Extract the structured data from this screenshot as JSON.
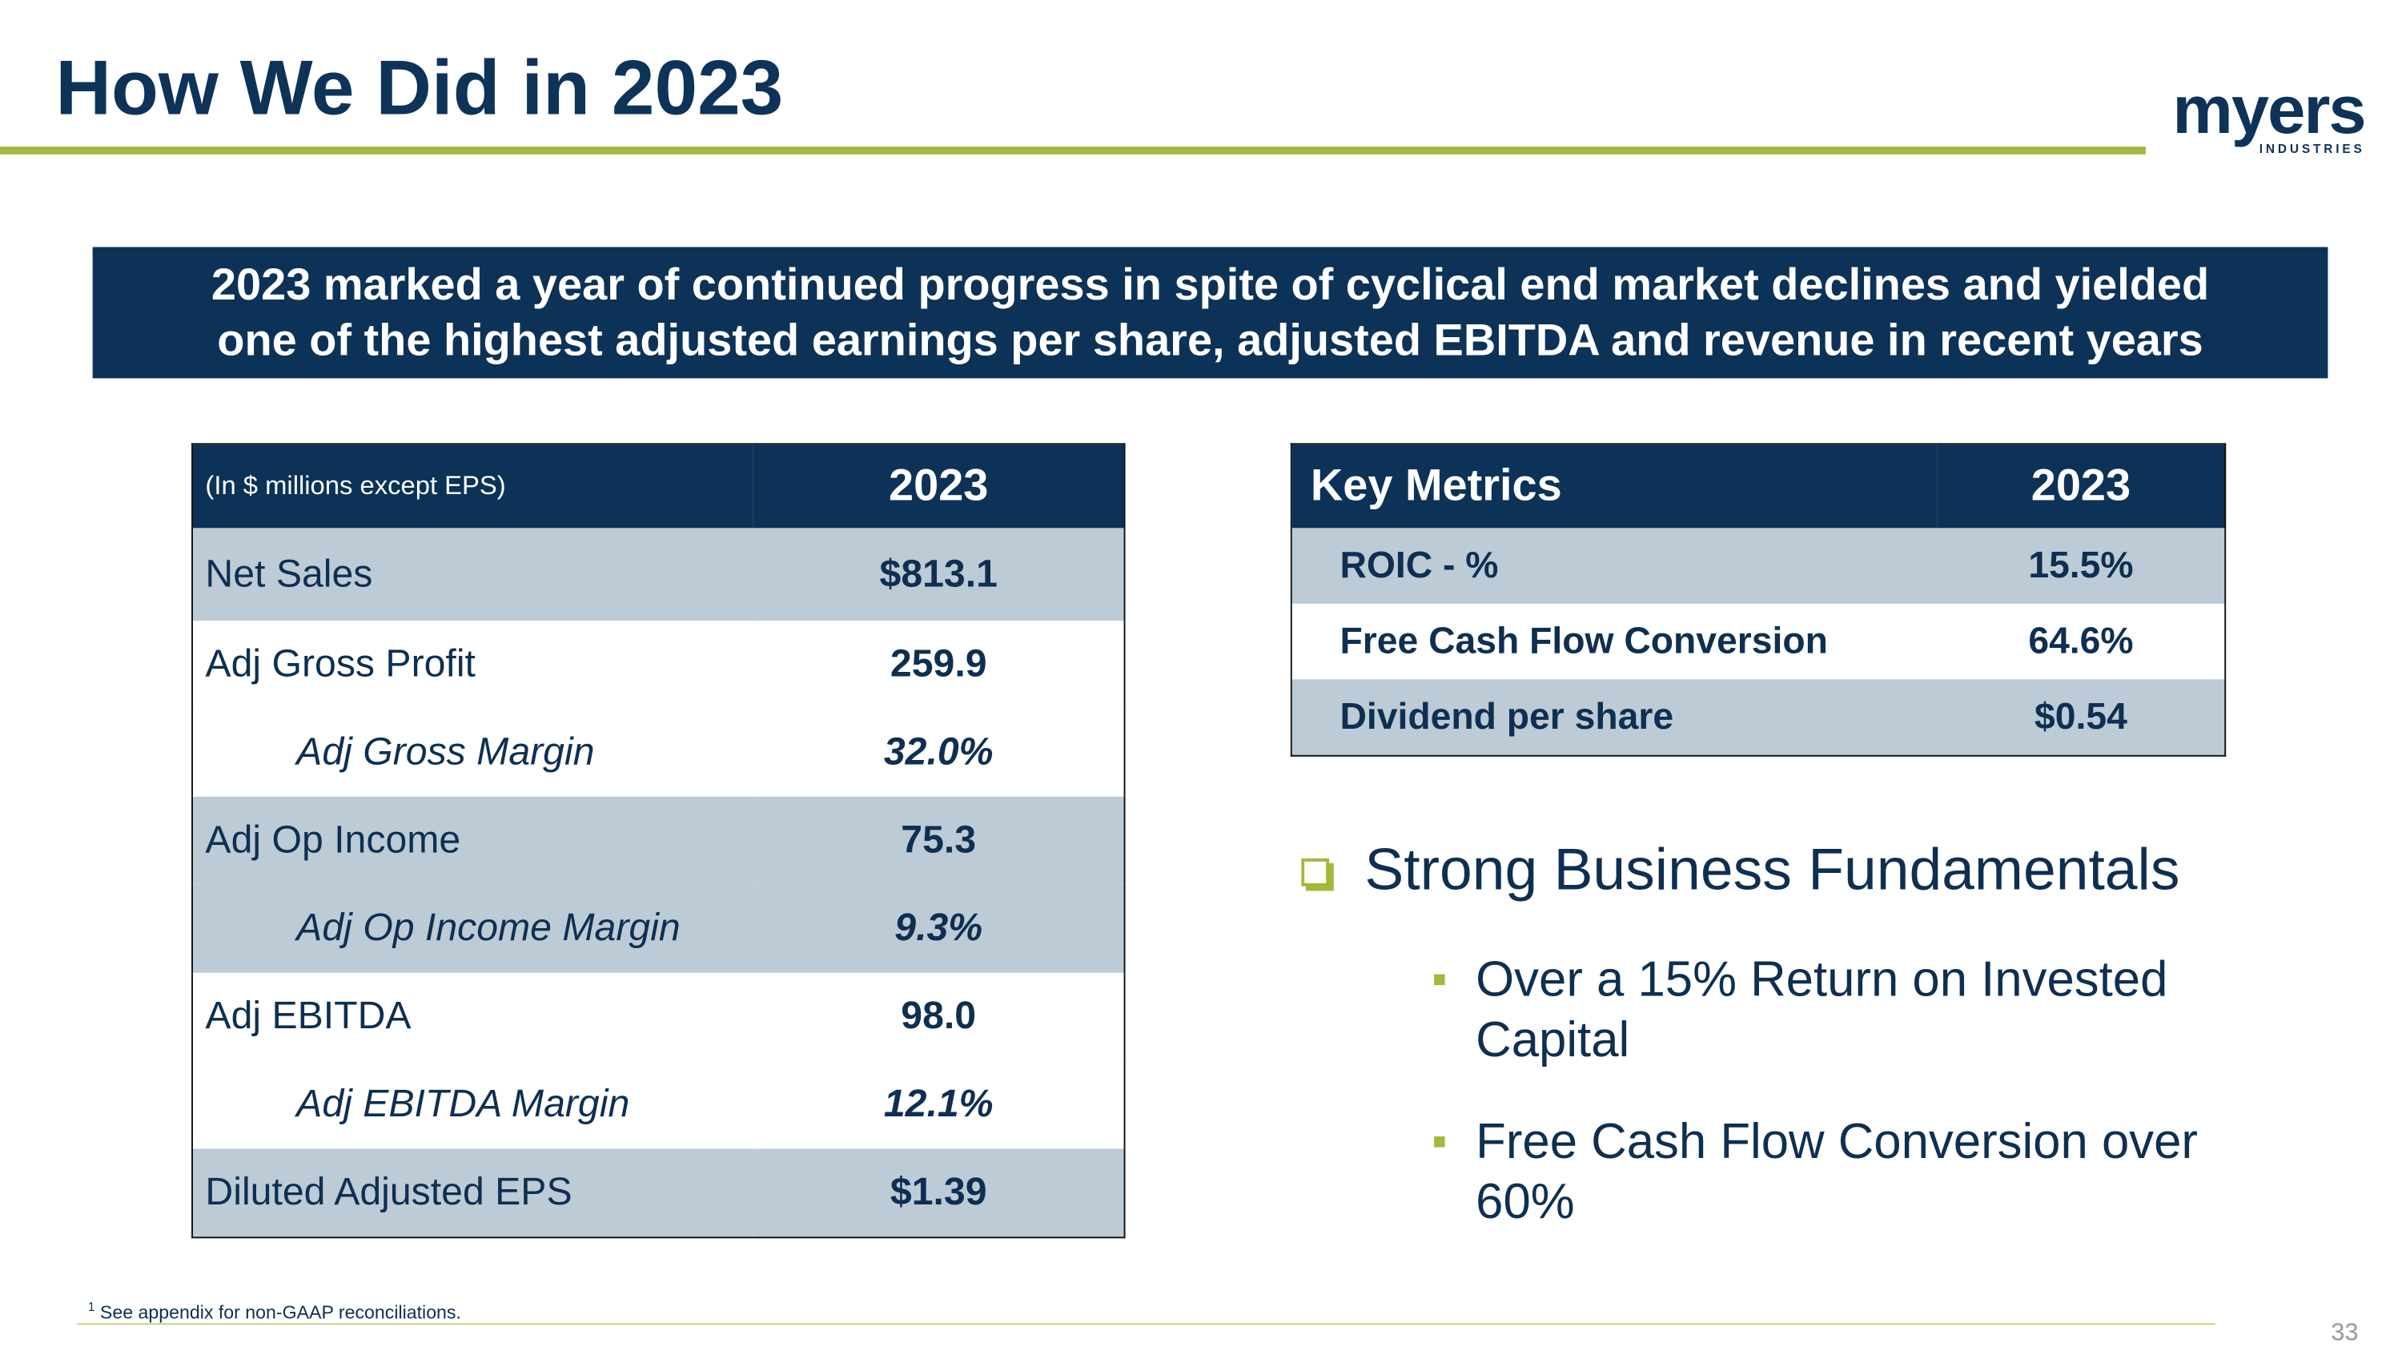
{
  "header": {
    "title": "How We Did in 2023",
    "logo": {
      "name": "myers",
      "sub": "INDUSTRIES"
    }
  },
  "banner": "2023 marked a year of continued progress in spite of cyclical end market declines and yielded one of the highest adjusted earnings per share, adjusted EBITDA and revenue in recent years",
  "financials": {
    "header": [
      "(In $ millions except EPS)",
      "2023"
    ],
    "rows": [
      [
        "Net Sales",
        "$813.1"
      ],
      [
        "Adj Gross Profit",
        "259.9"
      ],
      [
        "Adj Gross Margin",
        "32.0%"
      ],
      [
        "Adj Op Income",
        "75.3"
      ],
      [
        "Adj Op Income Margin",
        "9.3%"
      ],
      [
        "Adj EBITDA",
        "98.0"
      ],
      [
        "Adj EBITDA Margin",
        "12.1%"
      ],
      [
        "Diluted Adjusted EPS",
        "$1.39"
      ]
    ]
  },
  "key_metrics": {
    "header": [
      "Key Metrics",
      "2023"
    ],
    "rows": [
      [
        "ROIC - %",
        "15.5%"
      ],
      [
        "Free Cash Flow Conversion",
        "64.6%"
      ],
      [
        "Dividend per share",
        "$0.54"
      ]
    ]
  },
  "highlights": {
    "heading": "Strong Business Fundamentals",
    "items": [
      "Over a 15% Return on Invested Capital",
      "Free Cash Flow Conversion over 60%"
    ]
  },
  "footnote": {
    "marker": "1",
    "text": "See appendix for non-GAAP reconciliations."
  },
  "page_number": "33"
}
